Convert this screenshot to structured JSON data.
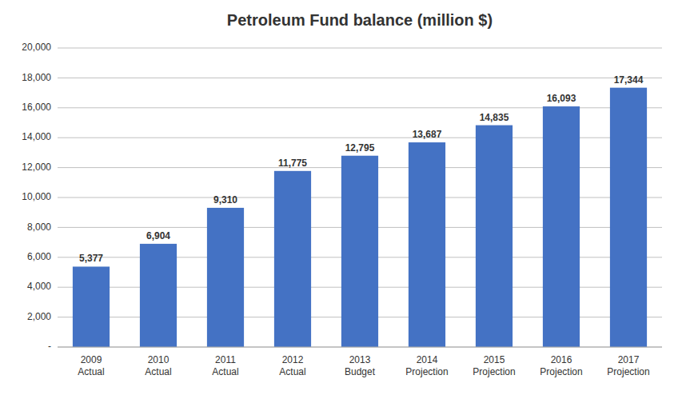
{
  "chart_data": {
    "type": "bar",
    "title": "Petroleum Fund balance (million $)",
    "categories": [
      "2009\nActual",
      "2010\nActual",
      "2011\nActual",
      "2012\nActual",
      "2013\nBudget",
      "2014\nProjection",
      "2015\nProjection",
      "2016\nProjection",
      "2017\nProjection"
    ],
    "values": [
      5377,
      6904,
      9310,
      11775,
      12795,
      13687,
      14835,
      16093,
      17344
    ],
    "value_labels": [
      "5,377",
      "6,904",
      "9,310",
      "11,775",
      "12,795",
      "13,687",
      "14,835",
      "16,093",
      "17,344"
    ],
    "data_labels": true,
    "color": "#4472C4",
    "ylim": [
      0,
      20000
    ],
    "yticks": [
      {
        "value": 0,
        "label": "-"
      },
      {
        "value": 2000,
        "label": "2,000"
      },
      {
        "value": 4000,
        "label": "4,000"
      },
      {
        "value": 6000,
        "label": "6,000"
      },
      {
        "value": 8000,
        "label": "8,000"
      },
      {
        "value": 10000,
        "label": "10,000"
      },
      {
        "value": 12000,
        "label": "12,000"
      },
      {
        "value": 14000,
        "label": "14,000"
      },
      {
        "value": 16000,
        "label": "16,000"
      },
      {
        "value": 18000,
        "label": "18,000"
      },
      {
        "value": 20000,
        "label": "20,000"
      }
    ],
    "grid": true
  }
}
